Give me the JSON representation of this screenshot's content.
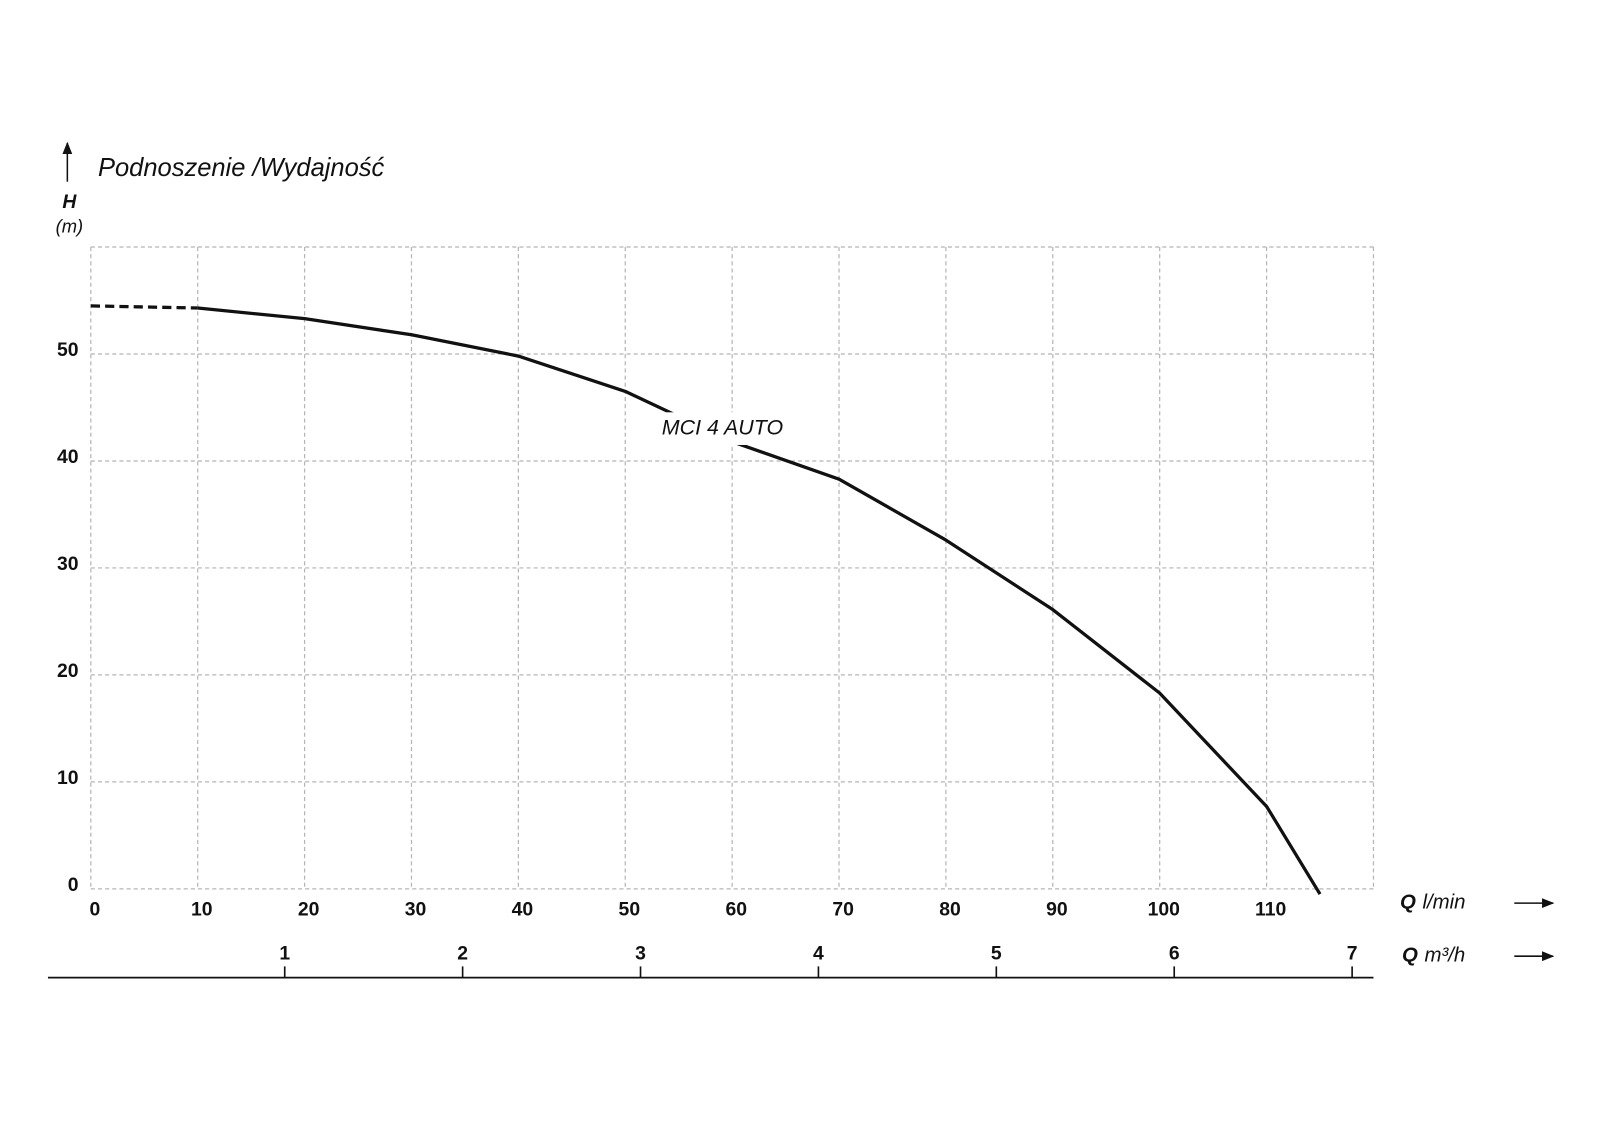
{
  "chart_data": {
    "type": "line",
    "title": "Podnoszenie /Wydajność",
    "y_label": "H",
    "y_unit": "(m)",
    "x_label": "Q",
    "x_unit": "l/min",
    "x2_label": "Q",
    "x2_unit": "m³/h",
    "xlim": [
      0,
      120
    ],
    "xticks": [
      0,
      10,
      20,
      30,
      40,
      50,
      60,
      70,
      80,
      90,
      100,
      110
    ],
    "ylim": [
      0,
      60
    ],
    "yticks": [
      0,
      10,
      20,
      30,
      40,
      50
    ],
    "x2lim": [
      -0.09,
      7.12
    ],
    "x2ticks": [
      1,
      2,
      3,
      4,
      5,
      6,
      7
    ],
    "grid": true,
    "dashed_below_x": 10,
    "series": [
      {
        "name": "MCI 4 AUTO",
        "color": "#111111",
        "x": [
          0,
          10,
          20,
          30,
          40,
          50,
          60,
          70,
          80,
          90,
          100,
          110,
          115
        ],
        "values": [
          54.5,
          54.3,
          53.3,
          51.8,
          49.8,
          46.5,
          41.8,
          38.3,
          32.6,
          26.1,
          18.3,
          7.7,
          -0.5
        ]
      }
    ]
  }
}
